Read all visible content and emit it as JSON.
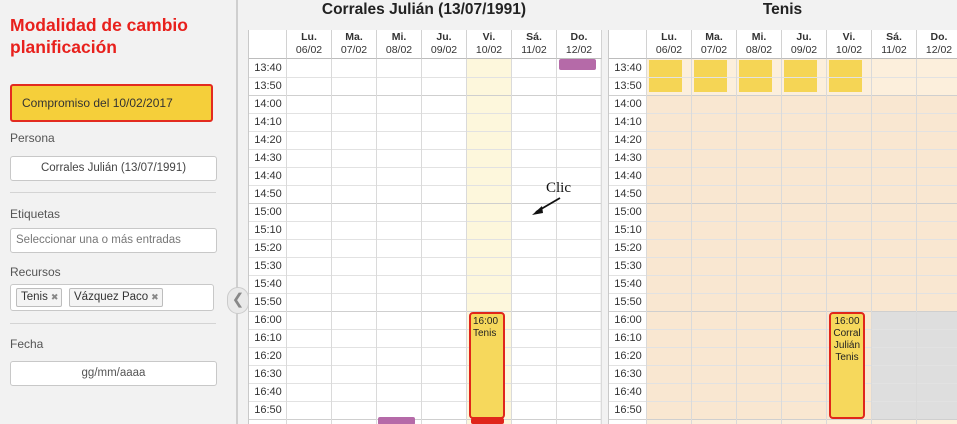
{
  "panel": {
    "title": "Modalidad de cambio planificación",
    "commitment": "Compromiso del 10/02/2017",
    "persona_label": "Persona",
    "persona_value": "Corrales Julián (13/07/1991)",
    "etiquetas_label": "Etiquetas",
    "etiquetas_placeholder": "Seleccionar una o más entradas",
    "recursos_label": "Recursos",
    "recursos_tags": [
      "Tenis",
      "Vázquez Paco"
    ],
    "fecha_label": "Fecha",
    "fecha_placeholder": "gg/mm/aaaa"
  },
  "calendars": [
    {
      "title": "Corrales Julián (13/07/1991)",
      "days": [
        {
          "dow": "Lu.",
          "date": "06/02"
        },
        {
          "dow": "Ma.",
          "date": "07/02"
        },
        {
          "dow": "Mi.",
          "date": "08/02"
        },
        {
          "dow": "Ju.",
          "date": "09/02"
        },
        {
          "dow": "Vi.",
          "date": "10/02"
        },
        {
          "dow": "Sá.",
          "date": "11/02"
        },
        {
          "dow": "Do.",
          "date": "12/02"
        }
      ],
      "event": {
        "time": "16:00",
        "title": "Tenis"
      }
    },
    {
      "title": "Tenis",
      "days": [
        {
          "dow": "Lu.",
          "date": "06/02"
        },
        {
          "dow": "Ma.",
          "date": "07/02"
        },
        {
          "dow": "Mi.",
          "date": "08/02"
        },
        {
          "dow": "Ju.",
          "date": "09/02"
        },
        {
          "dow": "Vi.",
          "date": "10/02"
        },
        {
          "dow": "Sá.",
          "date": "11/02"
        },
        {
          "dow": "Do.",
          "date": "12/02"
        }
      ],
      "event": {
        "time": "16:00",
        "line1": "Corral",
        "line2": "Julián",
        "line3": "Tenis"
      }
    }
  ],
  "times": [
    "13:40",
    "13:50",
    "14:00",
    "14:10",
    "14:20",
    "14:30",
    "14:40",
    "14:50",
    "15:00",
    "15:10",
    "15:20",
    "15:30",
    "15:40",
    "15:50",
    "16:00",
    "16:10",
    "16:20",
    "16:30",
    "16:40",
    "16:50"
  ],
  "annotation": "Clic",
  "colors": {
    "accent": "#e8201c",
    "event": "#f6d85c",
    "event_border": "#e0261b"
  }
}
